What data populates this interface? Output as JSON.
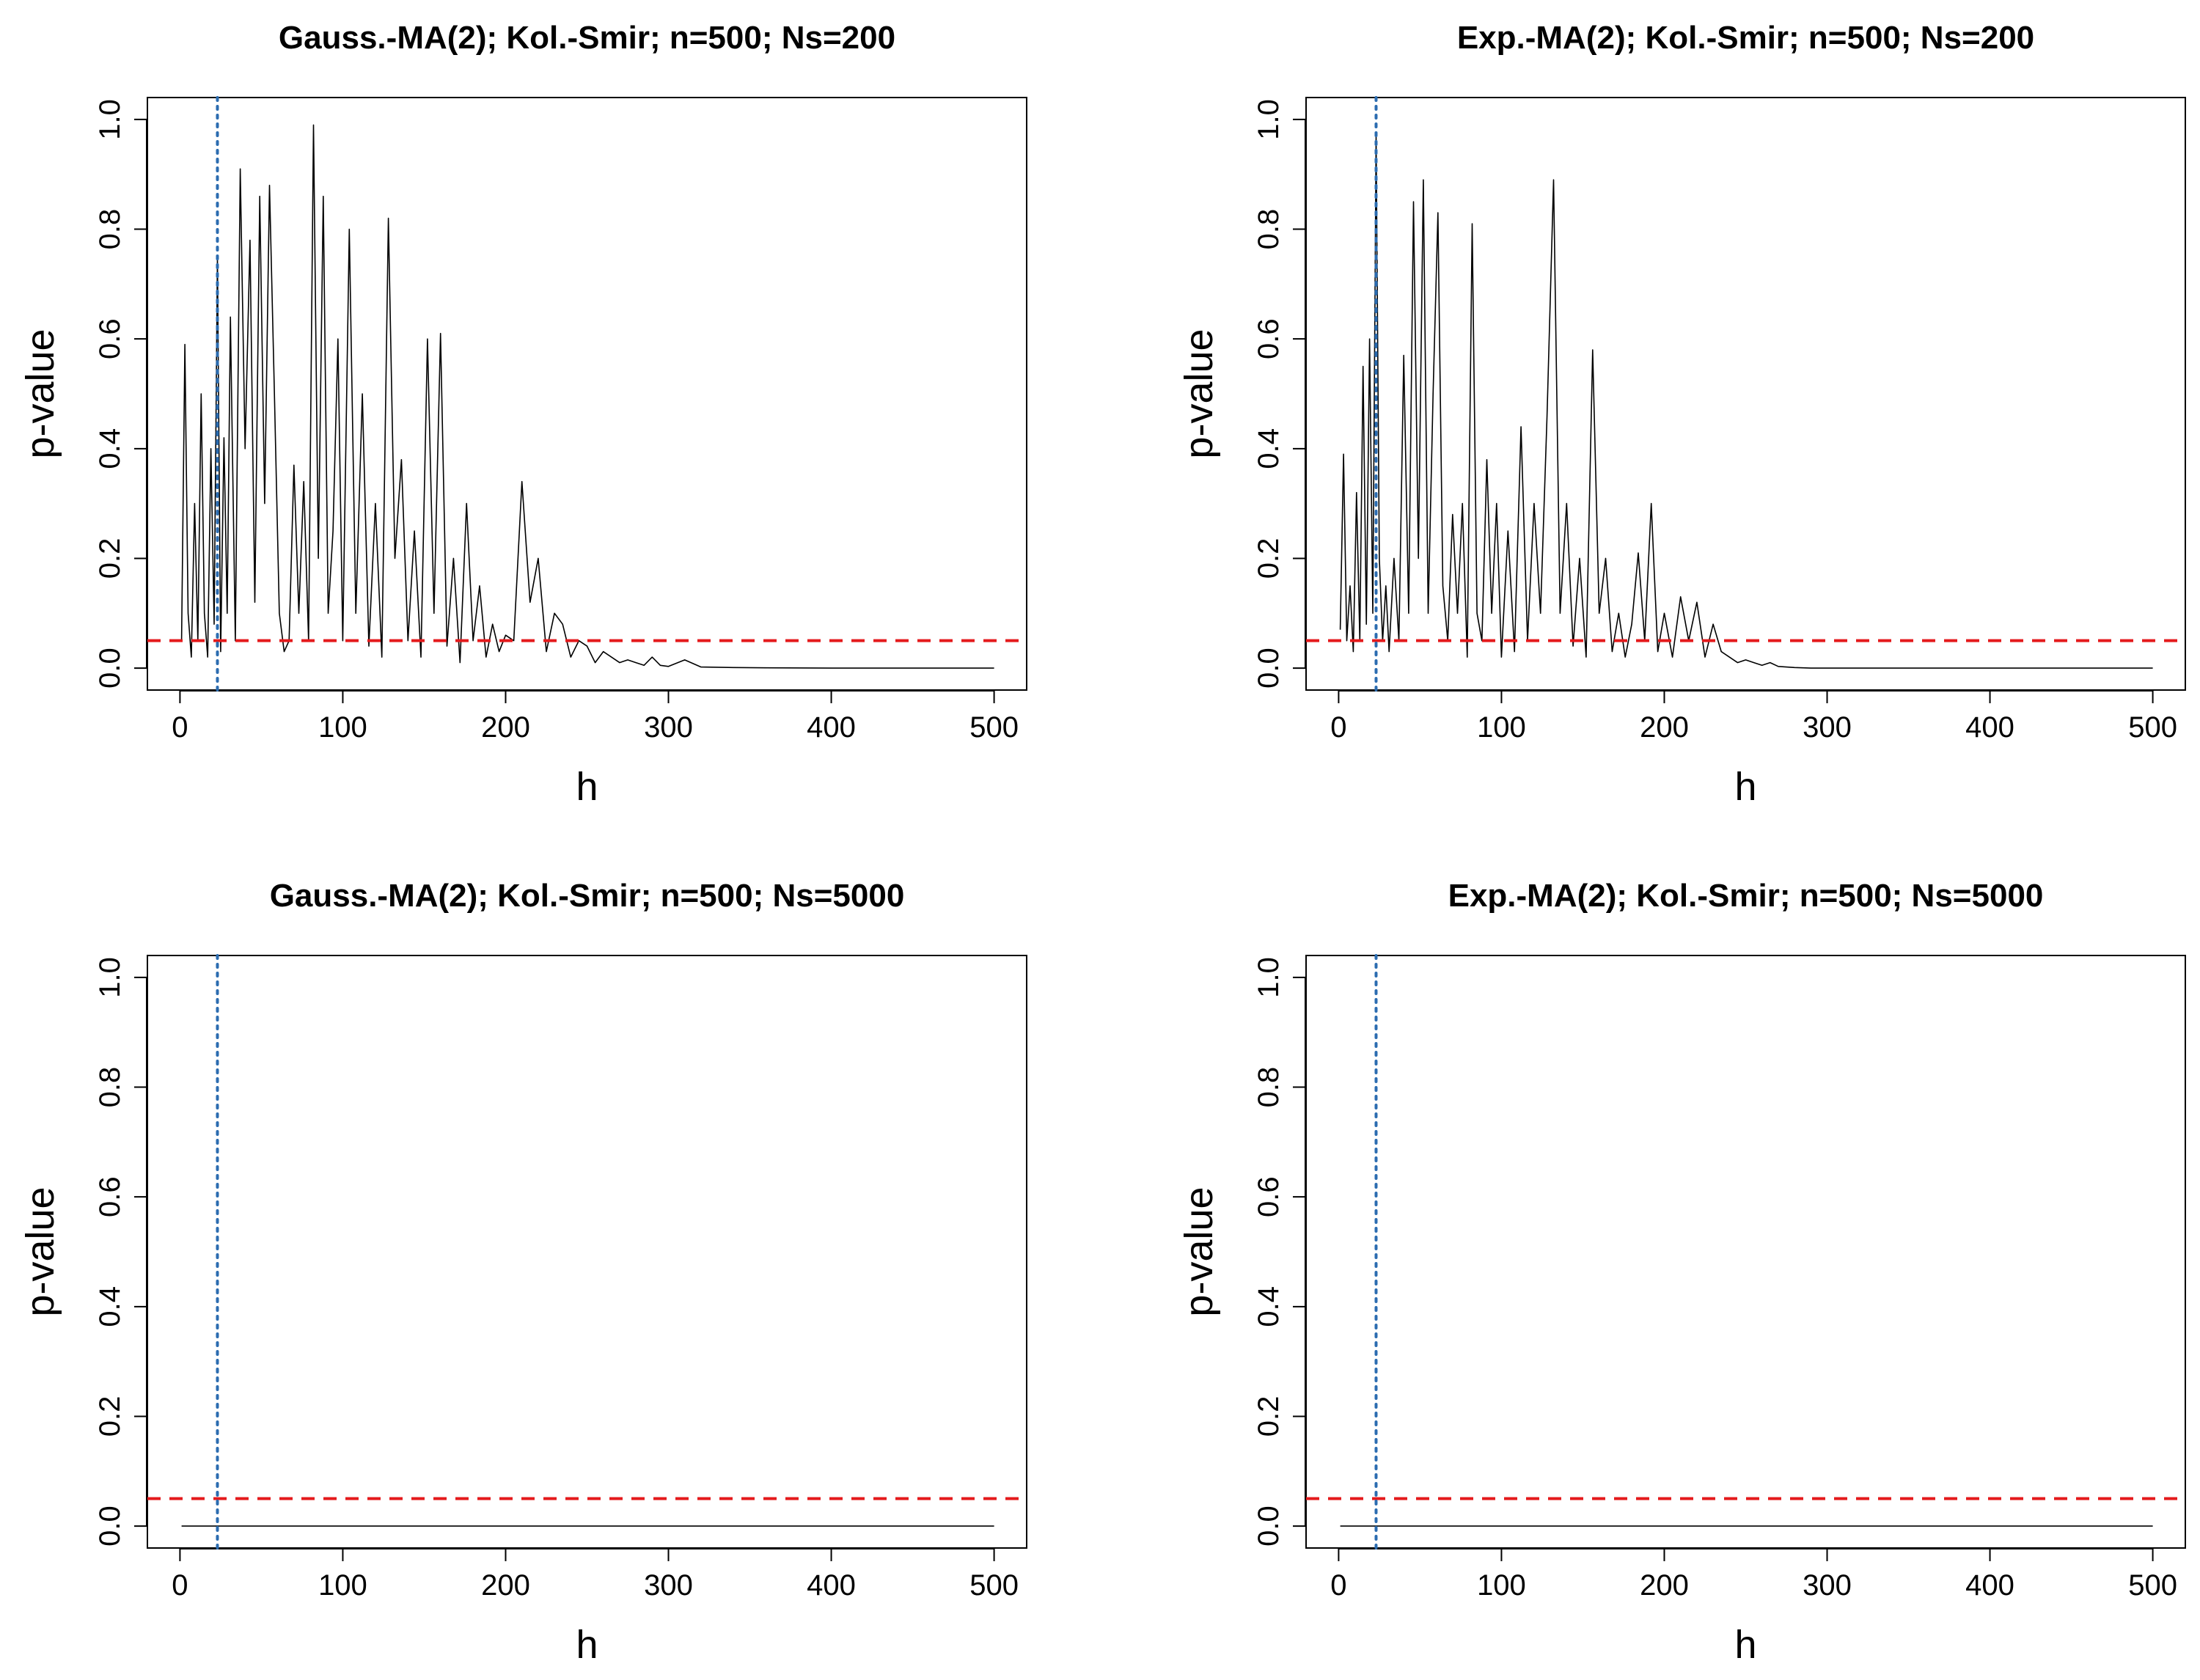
{
  "chart_data": [
    {
      "type": "line",
      "title": "Gauss.-MA(2);  Kol.-Smir;  n=500;  Ns=200",
      "xlabel": "h",
      "ylabel": "p-value",
      "xlim": [
        0,
        500
      ],
      "ylim": [
        0,
        1
      ],
      "xticks": [
        0,
        100,
        200,
        300,
        400,
        500
      ],
      "yticks": [
        0.0,
        0.2,
        0.4,
        0.6,
        0.8,
        1.0
      ],
      "xtick_labels": [
        "0",
        "100",
        "200",
        "300",
        "400",
        "500"
      ],
      "ytick_labels": [
        "0.0",
        "0.2",
        "0.4",
        "0.6",
        "0.8",
        "1.0"
      ],
      "reference_lines": [
        {
          "orientation": "horizontal",
          "value": 0.05,
          "color": "#e41a1c",
          "style": "dashed"
        },
        {
          "orientation": "vertical",
          "value": 23,
          "color": "#2b6cb0",
          "style": "dotted"
        }
      ],
      "series": [
        {
          "name": "p-value",
          "color": "#000000",
          "x": [
            1,
            3,
            5,
            7,
            9,
            11,
            13,
            15,
            17,
            19,
            21,
            23,
            25,
            27,
            29,
            31,
            34,
            37,
            40,
            43,
            46,
            49,
            52,
            55,
            58,
            61,
            64,
            67,
            70,
            73,
            76,
            79,
            82,
            85,
            88,
            91,
            94,
            97,
            100,
            104,
            108,
            112,
            116,
            120,
            124,
            128,
            132,
            136,
            140,
            144,
            148,
            152,
            156,
            160,
            164,
            168,
            172,
            176,
            180,
            184,
            188,
            192,
            196,
            200,
            205,
            210,
            215,
            220,
            225,
            230,
            235,
            240,
            245,
            250,
            255,
            260,
            265,
            270,
            275,
            280,
            285,
            290,
            295,
            300,
            310,
            320,
            340,
            360,
            400,
            450,
            500
          ],
          "values": [
            0.05,
            0.59,
            0.1,
            0.02,
            0.3,
            0.05,
            0.5,
            0.1,
            0.02,
            0.4,
            0.08,
            0.75,
            0.03,
            0.42,
            0.1,
            0.64,
            0.05,
            0.91,
            0.4,
            0.78,
            0.12,
            0.86,
            0.3,
            0.88,
            0.5,
            0.1,
            0.03,
            0.05,
            0.37,
            0.1,
            0.34,
            0.05,
            0.99,
            0.2,
            0.86,
            0.1,
            0.25,
            0.6,
            0.05,
            0.8,
            0.1,
            0.5,
            0.04,
            0.3,
            0.02,
            0.82,
            0.2,
            0.38,
            0.05,
            0.25,
            0.02,
            0.6,
            0.1,
            0.61,
            0.04,
            0.2,
            0.01,
            0.3,
            0.05,
            0.15,
            0.02,
            0.08,
            0.03,
            0.06,
            0.05,
            0.34,
            0.12,
            0.2,
            0.03,
            0.1,
            0.08,
            0.02,
            0.05,
            0.04,
            0.01,
            0.03,
            0.02,
            0.01,
            0.015,
            0.01,
            0.005,
            0.02,
            0.005,
            0.003,
            0.015,
            0.002,
            0.001,
            0.0005,
            0.0,
            0.0,
            0.0
          ]
        }
      ]
    },
    {
      "type": "line",
      "title": "Exp.-MA(2);  Kol.-Smir;  n=500;  Ns=200",
      "xlabel": "h",
      "ylabel": "p-value",
      "xlim": [
        0,
        500
      ],
      "ylim": [
        0,
        1
      ],
      "xticks": [
        0,
        100,
        200,
        300,
        400,
        500
      ],
      "yticks": [
        0.0,
        0.2,
        0.4,
        0.6,
        0.8,
        1.0
      ],
      "xtick_labels": [
        "0",
        "100",
        "200",
        "300",
        "400",
        "500"
      ],
      "ytick_labels": [
        "0.0",
        "0.2",
        "0.4",
        "0.6",
        "0.8",
        "1.0"
      ],
      "reference_lines": [
        {
          "orientation": "horizontal",
          "value": 0.05,
          "color": "#e41a1c",
          "style": "dashed"
        },
        {
          "orientation": "vertical",
          "value": 23,
          "color": "#2b6cb0",
          "style": "dotted"
        }
      ],
      "series": [
        {
          "name": "p-value",
          "color": "#000000",
          "x": [
            1,
            3,
            5,
            7,
            9,
            11,
            13,
            15,
            17,
            19,
            21,
            23,
            25,
            27,
            29,
            31,
            34,
            37,
            40,
            43,
            46,
            49,
            52,
            55,
            58,
            61,
            64,
            67,
            70,
            73,
            76,
            79,
            82,
            85,
            88,
            91,
            94,
            97,
            100,
            104,
            108,
            112,
            116,
            120,
            124,
            128,
            132,
            136,
            140,
            144,
            148,
            152,
            156,
            160,
            164,
            168,
            172,
            176,
            180,
            184,
            188,
            192,
            196,
            200,
            205,
            210,
            215,
            220,
            225,
            230,
            235,
            240,
            245,
            250,
            255,
            260,
            265,
            270,
            275,
            280,
            285,
            290,
            295,
            300,
            310,
            320,
            340,
            360,
            400,
            450,
            500
          ],
          "values": [
            0.07,
            0.39,
            0.05,
            0.15,
            0.03,
            0.32,
            0.05,
            0.55,
            0.08,
            0.6,
            0.1,
            0.97,
            0.2,
            0.05,
            0.15,
            0.03,
            0.2,
            0.05,
            0.57,
            0.1,
            0.85,
            0.2,
            0.89,
            0.1,
            0.5,
            0.83,
            0.15,
            0.05,
            0.28,
            0.1,
            0.3,
            0.02,
            0.81,
            0.1,
            0.05,
            0.38,
            0.1,
            0.3,
            0.02,
            0.25,
            0.03,
            0.44,
            0.05,
            0.3,
            0.1,
            0.46,
            0.89,
            0.1,
            0.3,
            0.04,
            0.2,
            0.02,
            0.58,
            0.1,
            0.2,
            0.03,
            0.1,
            0.02,
            0.08,
            0.21,
            0.05,
            0.3,
            0.03,
            0.1,
            0.02,
            0.13,
            0.05,
            0.12,
            0.02,
            0.08,
            0.03,
            0.02,
            0.01,
            0.015,
            0.01,
            0.005,
            0.01,
            0.003,
            0.002,
            0.001,
            0.0005,
            0.0,
            0.0,
            0.0,
            0.0,
            0.0,
            0.0,
            0.0,
            0.0,
            0.0,
            0.0
          ]
        }
      ]
    },
    {
      "type": "line",
      "title": "Gauss.-MA(2);  Kol.-Smir;  n=500;  Ns=5000",
      "xlabel": "h",
      "ylabel": "p-value",
      "xlim": [
        0,
        500
      ],
      "ylim": [
        0,
        1
      ],
      "xticks": [
        0,
        100,
        200,
        300,
        400,
        500
      ],
      "yticks": [
        0.0,
        0.2,
        0.4,
        0.6,
        0.8,
        1.0
      ],
      "xtick_labels": [
        "0",
        "100",
        "200",
        "300",
        "400",
        "500"
      ],
      "ytick_labels": [
        "0.0",
        "0.2",
        "0.4",
        "0.6",
        "0.8",
        "1.0"
      ],
      "reference_lines": [
        {
          "orientation": "horizontal",
          "value": 0.05,
          "color": "#e41a1c",
          "style": "dashed"
        },
        {
          "orientation": "vertical",
          "value": 23,
          "color": "#2b6cb0",
          "style": "dotted"
        }
      ],
      "series": [
        {
          "name": "p-value",
          "color": "#000000",
          "x": [
            1,
            500
          ],
          "values": [
            0.0,
            0.0
          ]
        }
      ]
    },
    {
      "type": "line",
      "title": "Exp.-MA(2);  Kol.-Smir;  n=500;  Ns=5000",
      "xlabel": "h",
      "ylabel": "p-value",
      "xlim": [
        0,
        500
      ],
      "ylim": [
        0,
        1
      ],
      "xticks": [
        0,
        100,
        200,
        300,
        400,
        500
      ],
      "yticks": [
        0.0,
        0.2,
        0.4,
        0.6,
        0.8,
        1.0
      ],
      "xtick_labels": [
        "0",
        "100",
        "200",
        "300",
        "400",
        "500"
      ],
      "ytick_labels": [
        "0.0",
        "0.2",
        "0.4",
        "0.6",
        "0.8",
        "1.0"
      ],
      "reference_lines": [
        {
          "orientation": "horizontal",
          "value": 0.05,
          "color": "#e41a1c",
          "style": "dashed"
        },
        {
          "orientation": "vertical",
          "value": 23,
          "color": "#2b6cb0",
          "style": "dotted"
        }
      ],
      "series": [
        {
          "name": "p-value",
          "color": "#000000",
          "x": [
            1,
            500
          ],
          "values": [
            0.0,
            0.0
          ]
        }
      ]
    }
  ]
}
